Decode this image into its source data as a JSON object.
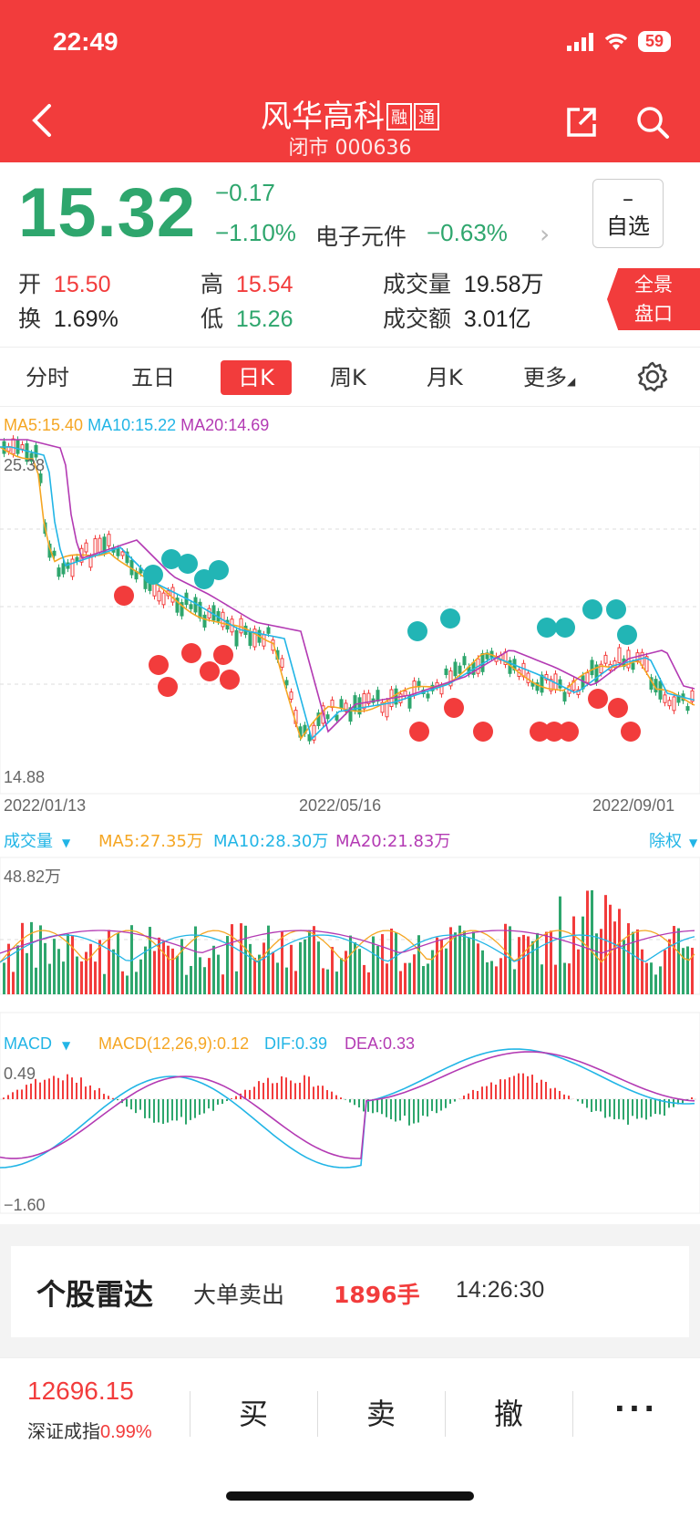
{
  "status": {
    "time": "22:49",
    "battery": "59"
  },
  "header": {
    "title": "风华高科",
    "tag1": "融",
    "tag2": "通",
    "subtitle": "闭市 000636"
  },
  "quote": {
    "price": "15.32",
    "change": "−0.17",
    "change_pct": "−1.10%",
    "sector": "电子元件",
    "sector_pct": "−0.63%",
    "watch_btn_top": "–",
    "watch_btn_label": "自选",
    "open_label": "开",
    "open": "15.50",
    "high_label": "高",
    "high": "15.54",
    "turnover_label": "换",
    "turnover": "1.69%",
    "low_label": "低",
    "low": "15.26",
    "volume_label": "成交量",
    "volume": "19.58万",
    "amount_label": "成交额",
    "amount": "3.01亿",
    "panorama_1": "全景",
    "panorama_2": "盘口"
  },
  "tabs": [
    "分时",
    "五日",
    "日K",
    "周K",
    "月K",
    "更多"
  ],
  "ma_legend": {
    "ma5": "MA5:15.40",
    "ma10": "MA10:15.22",
    "ma20": "MA20:14.69"
  },
  "price_axis": {
    "top": "25.38",
    "bottom": "14.88"
  },
  "date_axis": [
    "2022/01/13",
    "2022/05/16",
    "2022/09/01"
  ],
  "volume_panel": {
    "label": "成交量",
    "ma5": "MA5:27.35万",
    "ma10": "MA10:28.30万",
    "ma20": "MA20:21.83万",
    "right": "除权",
    "max": "48.82万"
  },
  "macd_panel": {
    "label": "MACD",
    "params": "MACD(12,26,9):0.12",
    "dif": "DIF:0.39",
    "dea": "DEA:0.33",
    "max": "0.49",
    "min": "−1.60"
  },
  "radar": {
    "title": "个股雷达",
    "type": "大单卖出",
    "volume": "1896手",
    "time": "14:26:30"
  },
  "bottom_bar": {
    "index_value": "12696.15",
    "index_name": "深证成指",
    "index_pct": "0.99%",
    "buy": "买",
    "sell": "卖",
    "cancel": "撤",
    "more": "···"
  },
  "colors": {
    "up": "#f23c3c",
    "down": "#2ea66d",
    "ma5": "#f5a623",
    "ma10": "#22b5e6",
    "ma20": "#b33ab3"
  }
}
